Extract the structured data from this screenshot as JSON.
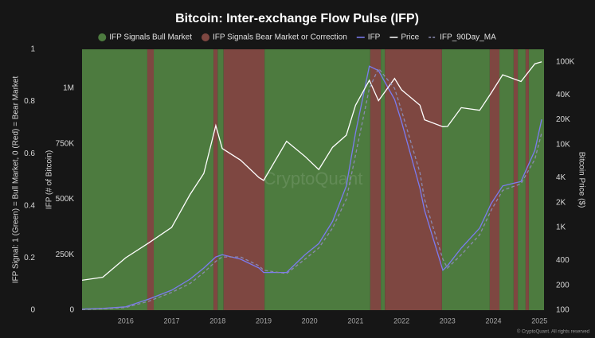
{
  "chart_data": {
    "type": "line",
    "title": "Bitcoin: Inter-exchange Flow Pulse (IFP)",
    "ylabel": "IFP Signal: 1 (Green) = Bull Market, 0 (Red) = Bear Market",
    "y2label": "IFP (# of Bitcoin)",
    "y3label": "Bitcoin Price ($)",
    "watermark": "CryptoQuant",
    "credit": "© CryptoQuant. All rights reserved",
    "xlim": [
      2015.05,
      2025.1
    ],
    "xticks": [
      2016,
      2017,
      2018,
      2019,
      2020,
      2021,
      2022,
      2023,
      2024,
      2025
    ],
    "ylim": [
      0,
      1
    ],
    "yticks": [
      0,
      0.2,
      0.4,
      0.6,
      0.8,
      1
    ],
    "y2lim": [
      0,
      1176000
    ],
    "y2ticks": [
      0,
      {
        "value": 250000,
        "label": "250K"
      },
      {
        "value": 500000,
        "label": "500K"
      },
      {
        "value": 750000,
        "label": "750K"
      },
      {
        "value": 1000000,
        "label": "1M"
      }
    ],
    "y3lim": [
      100,
      142000
    ],
    "y3log": true,
    "y3ticks": [
      100,
      200,
      400,
      {
        "value": 1000,
        "label": "1K"
      },
      {
        "value": 2000,
        "label": "2K"
      },
      {
        "value": 4000,
        "label": "4K"
      },
      {
        "value": 10000,
        "label": "10K"
      },
      {
        "value": 20000,
        "label": "20K"
      },
      {
        "value": 40000,
        "label": "40K"
      },
      {
        "value": 100000,
        "label": "100K"
      }
    ],
    "signal": {
      "bins": [
        2015.05,
        2016.47,
        2016.61,
        2017.91,
        2018.0,
        2018.13,
        2019.02,
        2021.32,
        2021.55,
        2021.64,
        2022.88,
        2023.92,
        2024.13,
        2024.44,
        2024.53,
        2024.7,
        2024.77,
        2025.1
      ],
      "values": [
        1,
        0,
        1,
        0,
        1,
        0,
        1,
        0,
        1,
        0,
        1,
        0,
        1,
        0,
        1,
        0,
        1
      ],
      "labels": [
        "IFP Signals Bear Market or Correction",
        "IFP Signals Bull Market"
      ],
      "colors": [
        "#7e4741",
        "#4d7b3f"
      ]
    },
    "x": [
      2015.05,
      2015.5,
      2016.0,
      2016.5,
      2017.0,
      2017.4,
      2017.7,
      2017.96,
      2018.1,
      2018.5,
      2018.9,
      2019.0,
      2019.5,
      2019.9,
      2020.2,
      2020.5,
      2020.8,
      2021.0,
      2021.3,
      2021.5,
      2021.85,
      2022.0,
      2022.4,
      2022.5,
      2022.9,
      2023.0,
      2023.3,
      2023.7,
      2023.95,
      2024.2,
      2024.6,
      2024.9,
      2025.05
    ],
    "series": [
      {
        "name": "IFP",
        "color": "#7b7bf0",
        "axis": "y2",
        "values": [
          5000,
          8000,
          15000,
          50000,
          90000,
          140000,
          190000,
          240000,
          250000,
          230000,
          190000,
          170000,
          170000,
          250000,
          300000,
          400000,
          560000,
          800000,
          1100000,
          1080000,
          950000,
          850000,
          550000,
          450000,
          180000,
          200000,
          280000,
          370000,
          480000,
          560000,
          580000,
          720000,
          860000
        ]
      },
      {
        "name": "Price",
        "color": "#ffffff",
        "axis": "y3",
        "values": [
          230,
          250,
          430,
          650,
          1000,
          2500,
          4500,
          17000,
          9000,
          6500,
          4000,
          3700,
          11000,
          7200,
          5000,
          9300,
          13000,
          30000,
          60000,
          34000,
          63000,
          46000,
          30000,
          20000,
          16500,
          16600,
          28000,
          26000,
          42000,
          70000,
          58000,
          95000,
          100000
        ]
      },
      {
        "name": "IFP_90Day_MA",
        "color": "#8a8ab0",
        "axis": "y2",
        "dashed": true,
        "values": [
          3000,
          6000,
          12000,
          40000,
          80000,
          120000,
          170000,
          220000,
          240000,
          240000,
          200000,
          180000,
          165000,
          230000,
          280000,
          370000,
          500000,
          700000,
          1000000,
          1090000,
          1000000,
          900000,
          620000,
          500000,
          230000,
          190000,
          250000,
          340000,
          450000,
          540000,
          570000,
          680000,
          800000
        ]
      }
    ]
  }
}
